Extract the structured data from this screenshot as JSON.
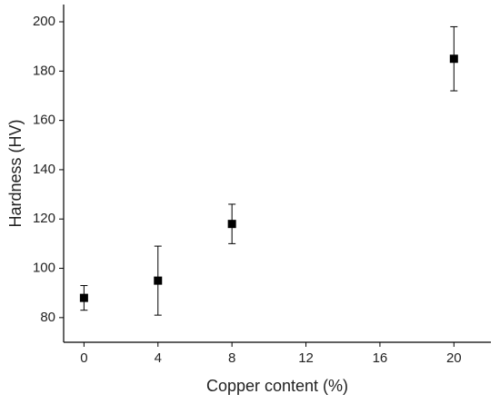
{
  "chart_data": {
    "type": "scatter",
    "x_label": "Copper content (%)",
    "y_label": "Hardness (HV)",
    "series": [
      {
        "color": "#000000",
        "x": [
          0,
          4,
          8,
          20
        ],
        "values": [
          88,
          95,
          118,
          185
        ],
        "errors": [
          5,
          14,
          8,
          13
        ]
      }
    ],
    "xlim": [
      -1.1,
      22
    ],
    "xticks": [
      0,
      4,
      8,
      12,
      16,
      20
    ],
    "ylim": [
      70,
      207
    ],
    "yticks": [
      80,
      100,
      120,
      140,
      160,
      180,
      200
    ]
  }
}
